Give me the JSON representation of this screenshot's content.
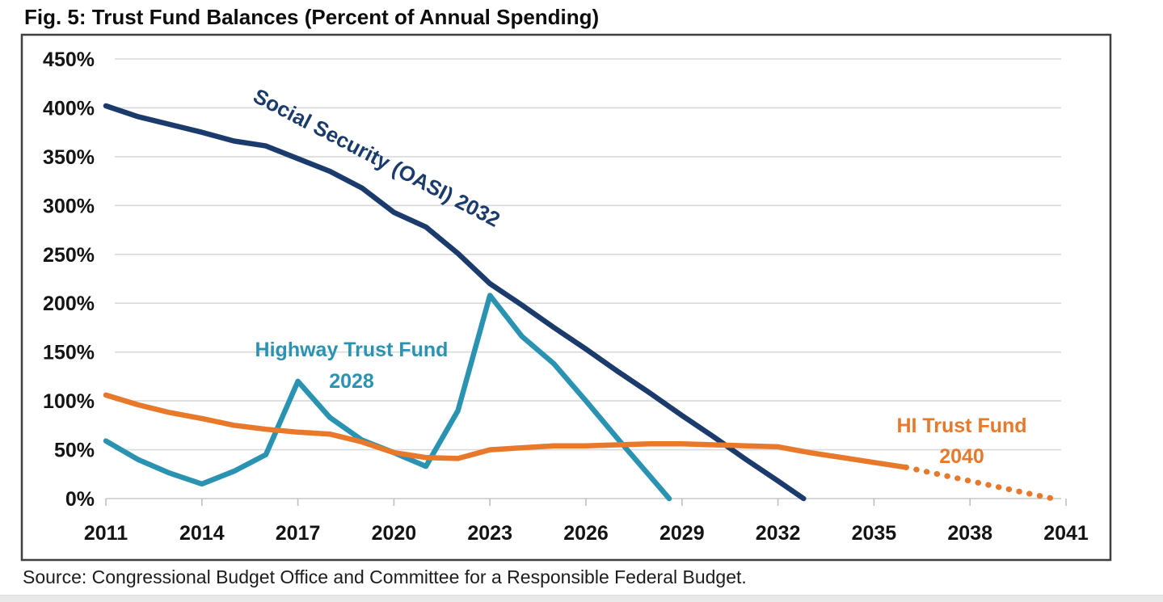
{
  "title": "Fig. 5: Trust Fund Balances (Percent of Annual Spending)",
  "source": "Source: Congressional Budget Office and Committee for a Responsible Federal Budget.",
  "chart_data": {
    "type": "line",
    "title": "Fig. 5: Trust Fund Balances (Percent of Annual Spending)",
    "xlabel": "",
    "ylabel": "Percent of Annual Spending",
    "xlim": [
      2011,
      2041
    ],
    "ylim": [
      0,
      450
    ],
    "x_ticks": [
      2011,
      2014,
      2017,
      2020,
      2023,
      2026,
      2029,
      2032,
      2035,
      2038,
      2041
    ],
    "x_tick_labels": [
      "2011",
      "2014",
      "2017",
      "2020",
      "2023",
      "2026",
      "2029",
      "2032",
      "2035",
      "2038",
      "2041"
    ],
    "y_ticks": [
      0,
      50,
      100,
      150,
      200,
      250,
      300,
      350,
      400,
      450
    ],
    "y_tick_labels": [
      "0%",
      "50%",
      "100%",
      "150%",
      "200%",
      "250%",
      "300%",
      "350%",
      "400%",
      "450%"
    ],
    "grid": "horizontal",
    "legend_position": "inline-labels",
    "series": [
      {
        "id": "oasi",
        "name": "Social Security (OASI)",
        "label_lines": [
          "Social Security (OASI) 2032"
        ],
        "depletion_year_label": "2032",
        "color": "#1b3b6d",
        "line_style": "solid",
        "points": [
          [
            2011,
            402
          ],
          [
            2012,
            391
          ],
          [
            2013,
            383
          ],
          [
            2014,
            375
          ],
          [
            2015,
            366
          ],
          [
            2016,
            361
          ],
          [
            2017,
            348
          ],
          [
            2018,
            335
          ],
          [
            2019,
            318
          ],
          [
            2020,
            293
          ],
          [
            2021,
            278
          ],
          [
            2022,
            251
          ],
          [
            2023,
            220
          ],
          [
            2024,
            198
          ],
          [
            2025,
            175
          ],
          [
            2026,
            153
          ],
          [
            2027,
            130
          ],
          [
            2028,
            108
          ],
          [
            2029,
            85
          ],
          [
            2030,
            63
          ],
          [
            2031,
            40
          ],
          [
            2032,
            18
          ],
          [
            2032.8,
            0
          ]
        ]
      },
      {
        "id": "highway",
        "name": "Highway Trust Fund",
        "label_lines": [
          "Highway Trust Fund",
          "2028"
        ],
        "depletion_year_label": "2028",
        "color": "#2b93b2",
        "line_style": "solid",
        "points": [
          [
            2011,
            59
          ],
          [
            2012,
            40
          ],
          [
            2013,
            26
          ],
          [
            2014,
            15
          ],
          [
            2015,
            28
          ],
          [
            2016,
            45
          ],
          [
            2017,
            120
          ],
          [
            2018,
            83
          ],
          [
            2019,
            60
          ],
          [
            2020,
            47
          ],
          [
            2021,
            33
          ],
          [
            2022,
            90
          ],
          [
            2023,
            208
          ],
          [
            2024,
            166
          ],
          [
            2025,
            138
          ],
          [
            2026,
            100
          ],
          [
            2027,
            61
          ],
          [
            2028,
            23
          ],
          [
            2028.6,
            0
          ]
        ]
      },
      {
        "id": "hi",
        "name": "HI Trust Fund",
        "label_lines": [
          "HI Trust Fund",
          "2040"
        ],
        "depletion_year_label": "2040",
        "color": "#e8782a",
        "line_style": "solid_then_dotted",
        "points_solid": [
          [
            2011,
            106
          ],
          [
            2012,
            96
          ],
          [
            2013,
            88
          ],
          [
            2014,
            82
          ],
          [
            2015,
            75
          ],
          [
            2016,
            71
          ],
          [
            2017,
            68
          ],
          [
            2018,
            66
          ],
          [
            2019,
            58
          ],
          [
            2020,
            47
          ],
          [
            2021,
            42
          ],
          [
            2022,
            41
          ],
          [
            2023,
            50
          ],
          [
            2024,
            52
          ],
          [
            2025,
            54
          ],
          [
            2026,
            54
          ],
          [
            2027,
            55
          ],
          [
            2028,
            56
          ],
          [
            2029,
            56
          ],
          [
            2030,
            55
          ],
          [
            2031,
            54
          ],
          [
            2032,
            53
          ],
          [
            2033,
            47
          ],
          [
            2034,
            42
          ],
          [
            2035,
            37
          ],
          [
            2036,
            32
          ]
        ],
        "points_dotted": [
          [
            2036,
            32
          ],
          [
            2037,
            25
          ],
          [
            2038,
            18
          ],
          [
            2039,
            11
          ],
          [
            2040,
            4
          ],
          [
            2040.6,
            0
          ]
        ]
      }
    ]
  }
}
